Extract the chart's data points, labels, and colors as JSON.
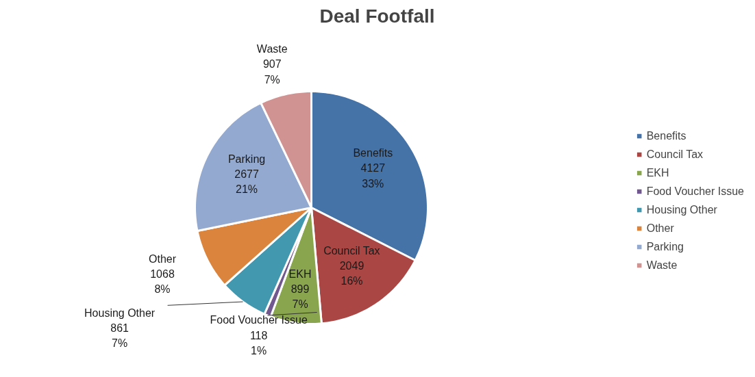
{
  "chart_data": {
    "type": "pie",
    "title": "Deal Footfall",
    "categories": [
      "Benefits",
      "Council Tax",
      "EKH",
      "Food Voucher Issue",
      "Housing Other",
      "Other",
      "Parking",
      "Waste"
    ],
    "values": [
      4127,
      2049,
      899,
      118,
      861,
      1068,
      2677,
      907
    ],
    "value_labels": [
      "4127\n33%",
      "2049\n16%",
      "899\n7%",
      "118\n1%",
      "861\n7%",
      "1068\n8%",
      "2677\n21%",
      "907\n7%"
    ],
    "colors": [
      "#4572a7",
      "#aa4643",
      "#89a54e",
      "#71588f",
      "#4198af",
      "#db843d",
      "#93a9cf",
      "#d19392"
    ],
    "data_labels": true,
    "legend": "right"
  }
}
